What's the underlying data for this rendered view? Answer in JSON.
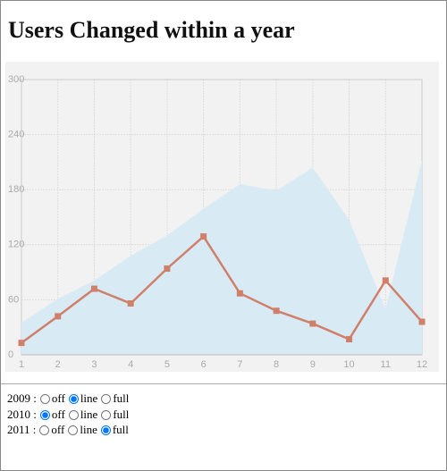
{
  "title": "Users Changed within a year",
  "chart_data": {
    "type": "line",
    "x": [
      1,
      2,
      3,
      4,
      5,
      6,
      7,
      8,
      9,
      10,
      11,
      12
    ],
    "xlim": [
      1,
      12
    ],
    "xticks": [
      1,
      2,
      3,
      4,
      5,
      6,
      7,
      8,
      9,
      10,
      11,
      12
    ],
    "ylim": [
      0,
      300
    ],
    "yticks": [
      0,
      60,
      120,
      180,
      240,
      300
    ],
    "grid": true,
    "series": [
      {
        "style": "full",
        "color": "#d8ebf5",
        "values": [
          35,
          61,
          81,
          108,
          130,
          159,
          186,
          179,
          204,
          147,
          50,
          212
        ]
      },
      {
        "style": "line",
        "color": "#d0806a",
        "values": [
          13,
          42,
          72,
          56,
          94,
          129,
          67,
          48,
          34,
          17,
          81,
          36
        ]
      }
    ]
  },
  "controls": {
    "separator": ":",
    "options": [
      "off",
      "line",
      "full"
    ],
    "rows": [
      {
        "name": "2009",
        "mode": "line"
      },
      {
        "name": "2010",
        "mode": "off"
      },
      {
        "name": "2011",
        "mode": "full"
      }
    ]
  }
}
